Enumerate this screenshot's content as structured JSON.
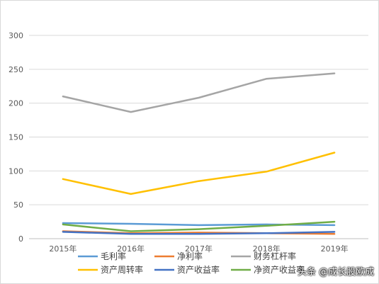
{
  "chart_data": {
    "type": "line",
    "title": "",
    "xlabel": "",
    "ylabel": "",
    "x": [
      "2015年",
      "2016年",
      "2017年",
      "2018年",
      "2019年"
    ],
    "ylim": [
      0,
      300
    ],
    "yticks": [
      0,
      50,
      100,
      150,
      200,
      250,
      300
    ],
    "grid": true,
    "legend_position": "bottom",
    "series": [
      {
        "name": "毛利率",
        "color": "#5b9bd5",
        "values": [
          23,
          22,
          20,
          21,
          20
        ]
      },
      {
        "name": "净利率",
        "color": "#ed7d31",
        "values": [
          11,
          8,
          9,
          8,
          7
        ]
      },
      {
        "name": "财务杠杆率",
        "color": "#a5a5a5",
        "values": [
          210,
          187,
          208,
          236,
          244
        ]
      },
      {
        "name": "资产周转率",
        "color": "#ffc000",
        "values": [
          88,
          66,
          85,
          99,
          127
        ]
      },
      {
        "name": "资产收益率",
        "color": "#4472c4",
        "values": [
          10,
          7,
          7,
          8,
          10
        ]
      },
      {
        "name": "净资产收益率",
        "color": "#70ad47",
        "values": [
          21,
          11,
          14,
          19,
          25
        ]
      }
    ]
  },
  "watermark": "头条 @成长股欧成"
}
